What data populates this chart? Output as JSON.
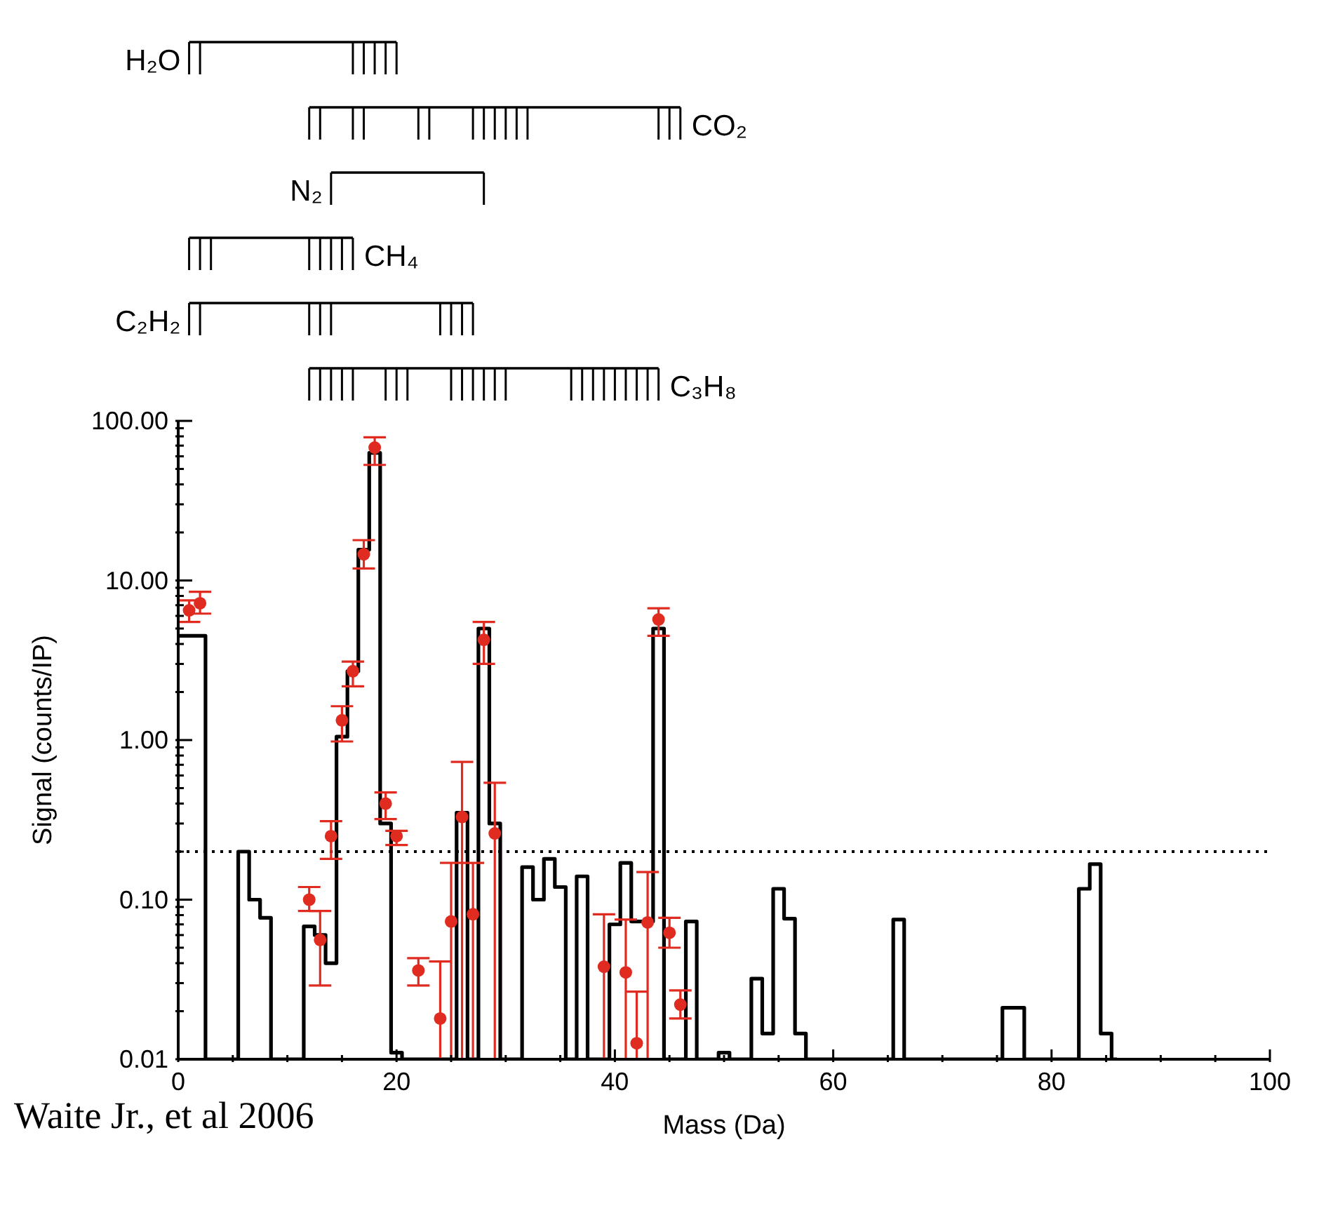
{
  "chart_data": {
    "type": "step",
    "xlabel": "Mass (Da)",
    "ylabel": "Signal (counts/IP)",
    "annotations": [
      "H₂O",
      "CO₂",
      "N₂",
      "CH₄",
      "C₂H₂",
      "C₃H₈",
      "Waite Jr., et al 2006"
    ],
    "xlim": [
      0,
      100
    ],
    "xticks": [
      0,
      {
        "value": 5,
        "label": null
      },
      {
        "value": 10,
        "label": null
      },
      {
        "value": 15,
        "label": null
      },
      20,
      {
        "value": 25,
        "label": null
      },
      {
        "value": 30,
        "label": null
      },
      {
        "value": 35,
        "label": null
      },
      40,
      {
        "value": 45,
        "label": null
      },
      {
        "value": 50,
        "label": null
      },
      {
        "value": 55,
        "label": null
      },
      60,
      {
        "value": 65,
        "label": null
      },
      {
        "value": 70,
        "label": null
      },
      {
        "value": 75,
        "label": null
      },
      80,
      {
        "value": 85,
        "label": null
      },
      {
        "value": 90,
        "label": null
      },
      {
        "value": 95,
        "label": null
      },
      100
    ],
    "ylim": [
      0.01,
      100
    ],
    "yticks": [
      {
        "value": 0.01,
        "label": "0.01"
      },
      {
        "value": 0.02,
        "label": null
      },
      {
        "value": 0.03,
        "label": null
      },
      {
        "value": 0.04,
        "label": null
      },
      {
        "value": 0.05,
        "label": null
      },
      {
        "value": 0.06,
        "label": null
      },
      {
        "value": 0.07,
        "label": null
      },
      {
        "value": 0.08,
        "label": null
      },
      {
        "value": 0.09,
        "label": null
      },
      {
        "value": 0.1,
        "label": "0.10"
      },
      {
        "value": 0.2,
        "label": null
      },
      {
        "value": 0.3,
        "label": null
      },
      {
        "value": 0.4,
        "label": null
      },
      {
        "value": 0.5,
        "label": null
      },
      {
        "value": 0.6,
        "label": null
      },
      {
        "value": 0.7,
        "label": null
      },
      {
        "value": 0.8,
        "label": null
      },
      {
        "value": 0.9,
        "label": null
      },
      {
        "value": 1,
        "label": "1.00"
      },
      {
        "value": 2,
        "label": null
      },
      {
        "value": 3,
        "label": null
      },
      {
        "value": 4,
        "label": null
      },
      {
        "value": 5,
        "label": null
      },
      {
        "value": 6,
        "label": null
      },
      {
        "value": 7,
        "label": null
      },
      {
        "value": 8,
        "label": null
      },
      {
        "value": 9,
        "label": null
      },
      {
        "value": 10,
        "label": "10.00"
      },
      {
        "value": 20,
        "label": null
      },
      {
        "value": 30,
        "label": null
      },
      {
        "value": 40,
        "label": null
      },
      {
        "value": 50,
        "label": null
      },
      {
        "value": 60,
        "label": null
      },
      {
        "value": 70,
        "label": null
      },
      {
        "value": 80,
        "label": null
      },
      {
        "value": 90,
        "label": null
      },
      {
        "value": 100,
        "label": "100.00"
      }
    ],
    "log": "y",
    "grid": false,
    "legend": false,
    "ref_lines": [
      {
        "axis": "y",
        "value": 0.2,
        "color": "#000000",
        "line_style": "dotted"
      }
    ],
    "series": [
      {
        "color": "#000000",
        "x": [
          0,
          1,
          2,
          3,
          4,
          5,
          6,
          7,
          8,
          9,
          10,
          11,
          12,
          13,
          14,
          15,
          16,
          17,
          18,
          19,
          20,
          21,
          22,
          23,
          24,
          25,
          26,
          27,
          28,
          29,
          30,
          31,
          32,
          33,
          34,
          35,
          36,
          37,
          38,
          39,
          40,
          41,
          42,
          43,
          44,
          45,
          46,
          47,
          48,
          49,
          50,
          51,
          52,
          53,
          54,
          55,
          56,
          57,
          58,
          59,
          60,
          61,
          62,
          63,
          64,
          65,
          66,
          67,
          68,
          69,
          70,
          71,
          72,
          73,
          74,
          75,
          76,
          77,
          78,
          79,
          80,
          81,
          82,
          83,
          84,
          85,
          86
        ],
        "values": [
          4.5,
          4.5,
          4.5,
          0.01,
          0.01,
          0.01,
          0.2,
          0.1,
          0.077,
          0.01,
          0.01,
          0.01,
          0.068,
          0.06,
          0.04,
          1.05,
          2.7,
          15.6,
          63,
          0.3,
          0.011,
          0.01,
          0.01,
          0.01,
          0.01,
          0.01,
          0.35,
          0.01,
          5,
          0.3,
          0.01,
          0.01,
          0.16,
          0.1,
          0.18,
          0.12,
          0.01,
          0.14,
          0.01,
          0.01,
          0.07,
          0.17,
          0.073,
          0.073,
          5,
          0.01,
          0.01,
          0.073,
          0.01,
          0.01,
          0.011,
          0.01,
          0.01,
          0.032,
          0.0145,
          0.117,
          0.076,
          0.0145,
          0.01,
          0.01,
          0.01,
          0.01,
          0.01,
          0.01,
          0.01,
          0.01,
          0.075,
          0.01,
          0.01,
          0.01,
          0.01,
          0.01,
          0.01,
          0.01,
          0.01,
          0.01,
          0.021,
          0.021,
          0.01,
          0.01,
          0.01,
          0.01,
          0.01,
          0.117,
          0.167,
          0.0145,
          0.01
        ]
      },
      {
        "type": "scatter",
        "color": "#e02b20",
        "marker": "circle",
        "x": [
          1,
          2,
          12,
          13,
          14,
          15,
          16,
          17,
          18,
          19,
          20,
          22,
          24,
          25,
          26,
          27,
          28,
          29,
          39,
          41,
          42,
          43,
          44,
          45,
          46
        ],
        "values": [
          6.5,
          7.2,
          0.1,
          0.056,
          0.25,
          1.33,
          2.7,
          14.6,
          68,
          0.4,
          0.25,
          0.036,
          0.018,
          0.073,
          0.33,
          0.081,
          4.25,
          0.26,
          0.038,
          0.035,
          0.0126,
          0.072,
          5.7,
          0.062,
          0.022
        ],
        "errors": [
          [
            5.5,
            7.5
          ],
          [
            6.2,
            8.5
          ],
          [
            0.085,
            0.12
          ],
          [
            0.029,
            0.085
          ],
          [
            0.18,
            0.31
          ],
          [
            0.98,
            1.63
          ],
          [
            2.17,
            3.1
          ],
          [
            11.9,
            17.9
          ],
          [
            53,
            79
          ],
          [
            0.32,
            0.47
          ],
          [
            0.22,
            0.27
          ],
          [
            0.029,
            0.043
          ],
          [
            0.01,
            0.041
          ],
          [
            0.01,
            0.17
          ],
          [
            0.01,
            0.73
          ],
          [
            0.01,
            0.17
          ],
          [
            3,
            5.5
          ],
          [
            0.01,
            0.54
          ],
          [
            0.01,
            0.081
          ],
          [
            0.01,
            0.075
          ],
          [
            0.01,
            0.0265
          ],
          [
            0.01,
            0.149
          ],
          [
            4.5,
            6.7
          ],
          [
            0.05,
            0.077
          ],
          [
            0.018,
            0.027
          ]
        ]
      }
    ]
  }
}
